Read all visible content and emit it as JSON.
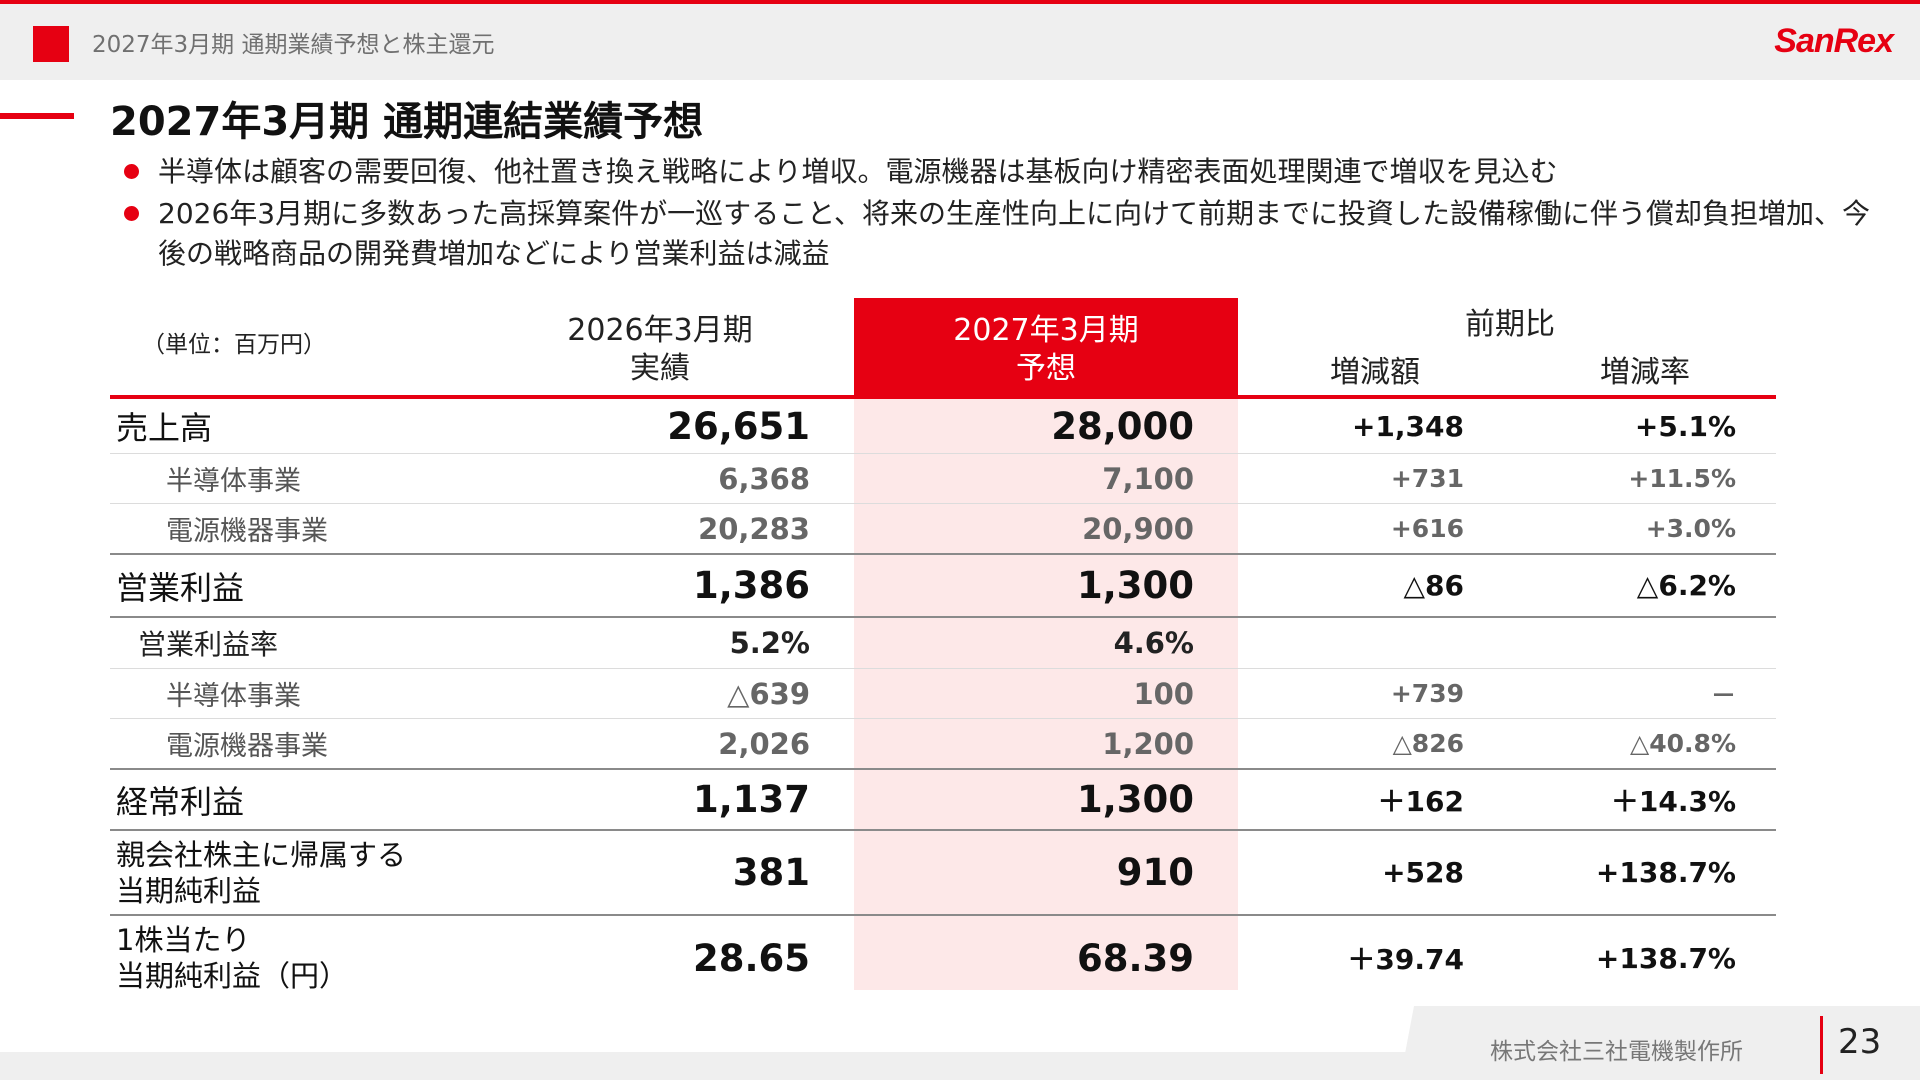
{
  "header": {
    "section_title": "2027年3月期 通期業績予想と株主還元",
    "logo_text": "SanRex",
    "accent_color": "#e60012"
  },
  "slide": {
    "title": "2027年3月期 通期連結業績予想",
    "bullets": [
      "半導体は顧客の需要回復、他社置き換え戦略により増収。電源機器は基板向け精密表面処理関連で増収を見込む",
      "2026年3月期に多数あった高採算案件が一巡すること、将来の生産性向上に向けて前期までに投資した設備稼働に伴う償却負担増加、今後の戦略商品の開発費増加などにより営業利益は減益"
    ]
  },
  "table": {
    "unit": "（単位：百万円）",
    "col_prev": {
      "line1": "2026年3月期",
      "line2": "実績"
    },
    "col_forecast": {
      "line1": "2027年3月期",
      "line2": "予想"
    },
    "col_compare": "前期比",
    "col_diff": "増減額",
    "col_rate": "増減率",
    "rows": [
      {
        "label": "売上高",
        "prev": "26,651",
        "forecast": "28,000",
        "diff": "+1,348",
        "rate": "+5.1%"
      },
      {
        "label": "半導体事業",
        "prev": "6,368",
        "forecast": "7,100",
        "diff": "+731",
        "rate": "+11.5%"
      },
      {
        "label": "電源機器事業",
        "prev": "20,283",
        "forecast": "20,900",
        "diff": "+616",
        "rate": "+3.0%"
      },
      {
        "label": "営業利益",
        "prev": "1,386",
        "forecast": "1,300",
        "diff": "△86",
        "rate": "△6.2%"
      },
      {
        "label": "営業利益率",
        "prev": "5.2%",
        "forecast": "4.6%",
        "diff": "",
        "rate": ""
      },
      {
        "label": "半導体事業",
        "prev": "△639",
        "forecast": "100",
        "diff": "+739",
        "rate": "－"
      },
      {
        "label": "電源機器事業",
        "prev": "2,026",
        "forecast": "1,200",
        "diff": "△826",
        "rate": "△40.8%"
      },
      {
        "label": "経常利益",
        "prev": "1,137",
        "forecast": "1,300",
        "diff": "＋162",
        "rate": "＋14.3%"
      },
      {
        "label_line1": "親会社株主に帰属する",
        "label_line2": "当期純利益",
        "prev": "381",
        "forecast": "910",
        "diff": "+528",
        "rate": "+138.7%"
      },
      {
        "label_line1": "1株当たり",
        "label_line2": "当期純利益（円）",
        "prev": "28.65",
        "forecast": "68.39",
        "diff": "＋39.74",
        "rate": "+138.7%"
      }
    ]
  },
  "footer": {
    "company": "株式会社三社電機製作所",
    "page_number": "23"
  }
}
